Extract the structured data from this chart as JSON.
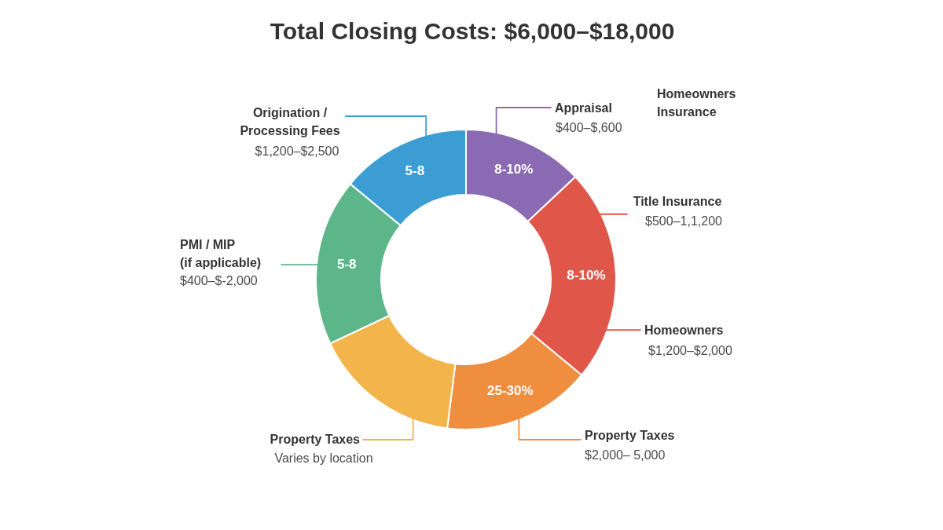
{
  "chart_data": {
    "type": "donut",
    "title": "Total Closing Costs: $6,000–$18,000",
    "categories": [
      "Appraisal",
      "Title Insurance",
      "Property Taxes",
      "Property Taxes",
      "PMI / MIP\n(if applicable)",
      "Origination /\nProcessing Fees"
    ],
    "values": [
      13,
      23,
      16,
      16,
      18,
      14
    ],
    "colors": [
      "#8a6bb3",
      "#e0574a",
      "#ef8e3f",
      "#f3b54b",
      "#5db68a",
      "#3c9dd5"
    ],
    "annotations": [
      "$400–$,600",
      "$500–1,1,200",
      "Homeowners",
      "$1,200–$2,000",
      "$2,000– 5,000",
      "Varies by location",
      "$400–$-2,000",
      "$1,200–$2,500",
      "Homeowners\nInsurance",
      "8-10%",
      "8-10%",
      "25-30%",
      "5-8",
      "5-8"
    ]
  }
}
